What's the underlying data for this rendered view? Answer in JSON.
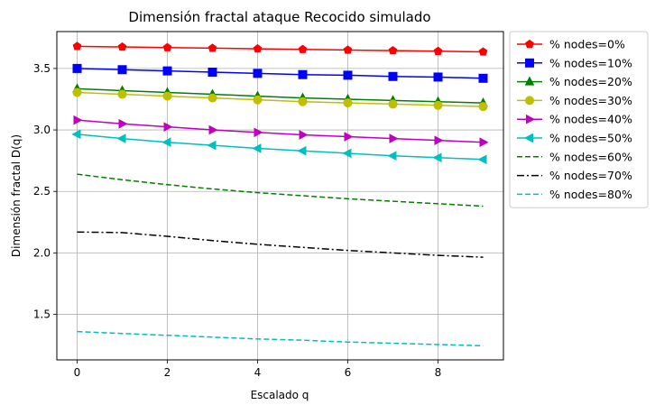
{
  "chart_data": {
    "type": "line",
    "title": "Dimensión fractal ataque Recocido simulado",
    "xlabel": "Escalado q",
    "ylabel": "Dimensión fractal D(q)",
    "xlim": [
      -0.45,
      9.45
    ],
    "ylim": [
      1.13,
      3.8
    ],
    "xticks": [
      0,
      2,
      4,
      6,
      8
    ],
    "yticks": [
      1.5,
      2.0,
      2.5,
      3.0,
      3.5
    ],
    "xtick_labels": [
      "0",
      "2",
      "4",
      "6",
      "8"
    ],
    "ytick_labels": [
      "1.5",
      "2.0",
      "2.5",
      "3.0",
      "3.5"
    ],
    "grid": true,
    "legend_position": "outside-right-top",
    "x": [
      0,
      1,
      2,
      3,
      4,
      5,
      6,
      7,
      8,
      9
    ],
    "series": [
      {
        "name": "% nodes=0%",
        "color": "#ff0000",
        "marker": "pentagon",
        "dash": "solid",
        "values": [
          3.68,
          3.675,
          3.67,
          3.665,
          3.66,
          3.655,
          3.65,
          3.645,
          3.64,
          3.635
        ]
      },
      {
        "name": "% nodes=10%",
        "color": "#0000ff",
        "marker": "square",
        "dash": "solid",
        "values": [
          3.5,
          3.49,
          3.48,
          3.47,
          3.46,
          3.45,
          3.445,
          3.435,
          3.43,
          3.42
        ]
      },
      {
        "name": "% nodes=20%",
        "color": "#008000",
        "marker": "triangle-up",
        "dash": "solid",
        "values": [
          3.335,
          3.32,
          3.305,
          3.29,
          3.275,
          3.26,
          3.25,
          3.24,
          3.23,
          3.22
        ]
      },
      {
        "name": "% nodes=30%",
        "color": "#bfbf00",
        "marker": "circle",
        "dash": "solid",
        "values": [
          3.305,
          3.29,
          3.275,
          3.26,
          3.245,
          3.23,
          3.22,
          3.21,
          3.2,
          3.19
        ]
      },
      {
        "name": "% nodes=40%",
        "color": "#bf00bf",
        "marker": "triangle-right",
        "dash": "solid",
        "values": [
          3.08,
          3.05,
          3.025,
          3.0,
          2.98,
          2.96,
          2.945,
          2.93,
          2.915,
          2.9
        ]
      },
      {
        "name": "% nodes=50%",
        "color": "#00bfbf",
        "marker": "triangle-left",
        "dash": "solid",
        "values": [
          2.965,
          2.93,
          2.9,
          2.875,
          2.85,
          2.83,
          2.81,
          2.79,
          2.775,
          2.76
        ]
      },
      {
        "name": "% nodes=60%",
        "color": "#008000",
        "marker": "none",
        "dash": "dashed",
        "values": [
          2.64,
          2.595,
          2.555,
          2.52,
          2.49,
          2.465,
          2.44,
          2.42,
          2.4,
          2.38
        ]
      },
      {
        "name": "% nodes=70%",
        "color": "#000000",
        "marker": "none",
        "dash": "dashdot",
        "values": [
          2.17,
          2.165,
          2.135,
          2.1,
          2.07,
          2.045,
          2.02,
          2.0,
          1.98,
          1.965
        ]
      },
      {
        "name": "% nodes=80%",
        "color": "#00bfbf",
        "marker": "none",
        "dash": "dashed",
        "values": [
          1.36,
          1.345,
          1.33,
          1.315,
          1.3,
          1.29,
          1.275,
          1.265,
          1.255,
          1.245
        ]
      }
    ]
  }
}
